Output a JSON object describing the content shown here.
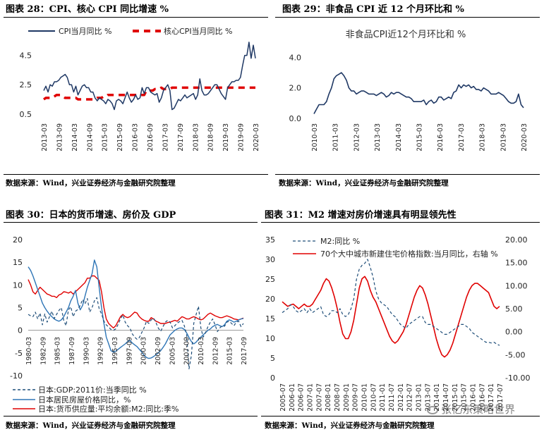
{
  "panels": [
    {
      "title": "图表 28：CPI、核心 CPI 同比增速  %",
      "source": "数据来源：Wind，兴业证券经济与金融研究院整理"
    },
    {
      "title": "图表 29：非食品 CPI 近 12 个月环比和  %",
      "source": "数据来源：Wind，兴业证券经济与金融研究院整理"
    },
    {
      "title": "图表 30：日本的货币增速、房价及 GDP",
      "source": "数据来源：Wind，兴业证券经济与金融研究院整理"
    },
    {
      "title": "图表 31：M2 增速对房价增速具有明显领先性",
      "source": "数据来源：Wind，兴业证券经济与金融研究院整理"
    }
  ],
  "watermark": "张忆东策略世界",
  "colors": {
    "navy": "#1f3864",
    "red": "#e00000",
    "blue": "#2e75b6",
    "darkblue": "#1f4e79"
  },
  "chart_data": [
    {
      "type": "line",
      "title": "",
      "x_ticks": [
        "2013-03",
        "2013-09",
        "2014-03",
        "2014-09",
        "2015-03",
        "2015-09",
        "2016-03",
        "2016-09",
        "2017-03",
        "2017-09",
        "2018-03",
        "2018-09",
        "2019-03",
        "2019-09",
        "2020-03"
      ],
      "y_ticks": [
        "0.5",
        "2.5",
        "4.5"
      ],
      "ylim": [
        0.2,
        5.3
      ],
      "legend": "top",
      "series": [
        {
          "name": "CPI当月同比  %",
          "style": "solid",
          "color": "#1f3864",
          "values": [
            2.1,
            2.4,
            2.0,
            2.5,
            2.4,
            2.7,
            2.7,
            2.8,
            3.0,
            3.1,
            3.2,
            3.0,
            2.5,
            2.5,
            2.0,
            2.4,
            1.8,
            2.1,
            2.4,
            2.5,
            2.3,
            2.3,
            2.0,
            2.0,
            1.6,
            1.4,
            1.6,
            1.5,
            1.4,
            1.2,
            1.5,
            1.4,
            1.2,
            0.8,
            1.4,
            1.5,
            1.4,
            1.2,
            1.6,
            2.0,
            1.6,
            1.3,
            1.5,
            1.8,
            1.5,
            1.6,
            2.3,
            1.9,
            2.3,
            2.3,
            2.0,
            1.9,
            1.8,
            1.9,
            1.3,
            1.6,
            2.1,
            2.3,
            2.5,
            2.1,
            0.8,
            0.9,
            1.2,
            1.5,
            1.4,
            1.6,
            1.8,
            1.6,
            1.7,
            1.8,
            1.9,
            1.5,
            1.8,
            2.9,
            2.1,
            1.8,
            1.8,
            1.9,
            2.1,
            2.3,
            2.5,
            2.5,
            2.2,
            1.9,
            1.7,
            1.5,
            2.3,
            2.5,
            2.7,
            2.7,
            2.8,
            2.8,
            3.0,
            3.8,
            4.5,
            4.5,
            5.4,
            4.3,
            5.2,
            4.3
          ]
        },
        {
          "name": "核心CPI当月同比  %",
          "style": "dashed",
          "color": "#e00000",
          "values": [
            1.5,
            1.6,
            1.6,
            1.6,
            1.6,
            1.7,
            1.8,
            1.8,
            1.8,
            1.7,
            1.6,
            1.6,
            1.6,
            1.6,
            1.6,
            1.6,
            1.5,
            1.5,
            1.5,
            1.5,
            1.5,
            1.5,
            1.5,
            1.5,
            1.5,
            1.6,
            1.6,
            1.6,
            1.7,
            1.7,
            1.8,
            1.8,
            1.8,
            1.8,
            1.8,
            1.8,
            1.8,
            1.8,
            1.8,
            1.8,
            1.8,
            1.8,
            1.8,
            1.8,
            1.8,
            1.8,
            1.8,
            1.8,
            2.1,
            2.1,
            2.1,
            2.1,
            2.2,
            2.2,
            2.2,
            2.3,
            2.2,
            2.2,
            2.2,
            2.2,
            2.3,
            2.3,
            2.3,
            2.3,
            2.3,
            2.3,
            2.3,
            2.3,
            2.3,
            2.3,
            2.3,
            2.3,
            2.3,
            2.3,
            2.3,
            2.3,
            2.3,
            2.3,
            2.3,
            2.3,
            2.3,
            2.3,
            2.3,
            2.3,
            2.3,
            2.3,
            2.3,
            2.3,
            2.3,
            2.3,
            2.3,
            2.3,
            2.3,
            2.3,
            2.3,
            2.3,
            2.3,
            2.3,
            2.3,
            2.3
          ]
        }
      ]
    },
    {
      "type": "line",
      "title": "非食品CPI近12个月环比和  %",
      "x_ticks": [
        "2010-03",
        "2011-03",
        "2012-03",
        "2013-03",
        "2014-03",
        "2015-03",
        "2016-03",
        "2017-03",
        "2018-03",
        "2019-03",
        "2020-03"
      ],
      "y_ticks": [
        "0.0",
        "2.0",
        "4.0"
      ],
      "ylim": [
        0,
        4.3
      ],
      "series": [
        {
          "name": "",
          "style": "solid",
          "color": "#1f3864",
          "values": [
            0.3,
            0.6,
            0.9,
            0.9,
            0.9,
            1.1,
            1.6,
            2.0,
            2.6,
            2.8,
            2.9,
            3.0,
            2.8,
            2.5,
            2.0,
            1.8,
            1.8,
            1.6,
            1.7,
            1.8,
            1.8,
            1.7,
            1.6,
            1.6,
            1.6,
            1.5,
            1.6,
            1.7,
            1.6,
            1.4,
            1.5,
            1.7,
            1.6,
            1.7,
            1.7,
            1.6,
            1.5,
            1.4,
            1.4,
            1.3,
            1.1,
            1.1,
            1.1,
            1.1,
            1.2,
            0.9,
            1.1,
            1.2,
            1.0,
            1.1,
            1.4,
            1.4,
            1.2,
            1.3,
            1.4,
            1.3,
            1.7,
            1.8,
            2.2,
            2.0,
            2.2,
            2.1,
            2.2,
            2.0,
            2.1,
            1.9,
            1.9,
            1.8,
            2.0,
            1.9,
            1.8,
            1.6,
            1.6,
            1.6,
            1.7,
            1.6,
            1.5,
            1.3,
            1.1,
            1.0,
            1.0,
            1.1,
            1.6,
            0.9,
            0.7
          ]
        }
      ]
    },
    {
      "type": "line",
      "title": "",
      "x_ticks": [
        "1980-03",
        "1982-09",
        "1985-03",
        "1987-09",
        "1990-03",
        "1992-09",
        "1995-03",
        "1997-09",
        "2000-03",
        "2002-09",
        "2005-03",
        "2007-09",
        "2010-03",
        "2012-09",
        "2015-03",
        "2017-09"
      ],
      "y_ticks": [
        "-10",
        "-5",
        "0",
        "5",
        "10",
        "15",
        "20"
      ],
      "ylim": [
        -10,
        20
      ],
      "legend": "bottom",
      "series": [
        {
          "name": "日本:GDP:2011价:当季同比  %",
          "style": "dashed",
          "color": "#1f4e79",
          "values": [
            3.5,
            3.2,
            3.0,
            4.0,
            2.5,
            3.8,
            1.2,
            3.6,
            1.8,
            3.0,
            4.2,
            2.6,
            3.5,
            4.4,
            5.0,
            2.2,
            1.0,
            4.5,
            5.2,
            3.0,
            4.2,
            4.6,
            5.5,
            6.8,
            5.8,
            7.0,
            4.0,
            5.0,
            6.5,
            7.2,
            4.8,
            3.6,
            2.0,
            1.2,
            0.7,
            0.2,
            0.0,
            0.3,
            1.3,
            2.5,
            3.4,
            1.8,
            1.0,
            0.5,
            -0.8,
            -1.5,
            -2.0,
            -1.6,
            -0.5,
            0.5,
            2.0,
            1.5,
            2.3,
            2.7,
            1.7,
            0.5,
            -0.2,
            0.8,
            1.8,
            2.2,
            1.8,
            0.5,
            1.0,
            1.6,
            1.9,
            2.2,
            1.0,
            -1.0,
            -8.5,
            -5.5,
            1.5,
            3.5,
            5.3,
            0.5,
            -1.5,
            -0.5,
            0.8,
            1.8,
            2.5,
            1.2,
            -0.3,
            0.5,
            1.0,
            0.9,
            1.8,
            2.0,
            1.5,
            1.0,
            1.8,
            2.0,
            0.8,
            1.5
          ]
        },
        {
          "name": "日本居民房屋价格同比，%",
          "style": "solid",
          "color": "#2e75b6",
          "values": [
            14.0,
            13.2,
            12.0,
            10.5,
            9.0,
            7.5,
            6.0,
            5.0,
            4.2,
            3.5,
            3.0,
            2.5,
            2.2,
            2.0,
            2.3,
            3.0,
            4.0,
            5.0,
            6.5,
            7.5,
            8.8,
            6.0,
            4.5,
            5.5,
            7.5,
            9.5,
            11.0,
            12.5,
            15.5,
            14.0,
            9.5,
            5.0,
            1.5,
            -1.5,
            -3.0,
            -4.5,
            -4.8,
            -4.6,
            -4.2,
            -3.8,
            -3.4,
            -3.0,
            -2.5,
            -2.2,
            -2.8,
            -3.2,
            -3.6,
            -4.2,
            -4.8,
            -5.5,
            -6.0,
            -6.2,
            -6.1,
            -5.8,
            -5.4,
            -5.0,
            -4.5,
            -3.8,
            -3.0,
            -2.0,
            -1.0,
            -0.5,
            0.0,
            0.3,
            0.5,
            0.5,
            0.2,
            -0.6,
            -1.6,
            -2.5,
            -3.0,
            -2.6,
            -2.0,
            -1.5,
            -1.0,
            -0.5,
            0.0,
            0.3,
            0.8,
            1.1,
            1.3,
            1.0,
            0.8,
            1.2,
            2.0,
            2.3,
            2.1,
            1.8,
            2.0,
            2.3,
            2.5,
            2.6
          ]
        },
        {
          "name": "日本:货币供应量:平均余额:M2:同比:季%",
          "style": "solid",
          "color": "#e00000",
          "values": [
            11.2,
            10.0,
            8.5,
            8.0,
            8.8,
            9.5,
            9.0,
            8.5,
            8.0,
            7.8,
            7.5,
            7.5,
            7.2,
            7.8,
            8.0,
            8.5,
            8.4,
            8.2,
            8.5,
            8.0,
            8.5,
            9.0,
            9.5,
            10.0,
            10.5,
            11.5,
            11.5,
            12.0,
            12.0,
            11.5,
            11.0,
            8.5,
            5.0,
            2.5,
            1.5,
            1.0,
            0.5,
            1.0,
            2.0,
            3.0,
            3.5,
            3.0,
            2.8,
            3.0,
            3.5,
            4.0,
            3.8,
            3.0,
            2.5,
            2.2,
            2.0,
            2.0,
            2.8,
            2.5,
            2.0,
            1.8,
            1.5,
            1.5,
            1.5,
            1.7,
            1.8,
            2.0,
            2.2,
            2.0,
            2.5,
            3.0,
            2.8,
            2.5,
            2.5,
            2.8,
            3.0,
            2.8,
            2.5,
            2.3,
            2.5,
            3.0,
            3.5,
            3.8,
            3.5,
            3.2,
            3.0,
            2.8,
            2.8,
            3.0,
            3.2,
            3.0,
            2.8,
            2.5,
            2.4,
            2.3,
            2.5,
            2.7
          ]
        }
      ]
    },
    {
      "type": "line",
      "title": "",
      "x_ticks": [
        "2005-07",
        "2006-01",
        "2006-07",
        "2007-01",
        "2007-07",
        "2008-01",
        "2008-07",
        "2009-01",
        "2009-07",
        "2010-01",
        "2010-07",
        "2011-01",
        "2011-07",
        "2012-01",
        "2012-07",
        "2013-01",
        "2013-07",
        "2014-01",
        "2014-07",
        "2015-01",
        "2015-07",
        "2016-01",
        "2016-07",
        "2017-01",
        "2017-07"
      ],
      "y_left_ticks": [
        "0",
        "5",
        "10",
        "15",
        "20",
        "25",
        "30",
        "35"
      ],
      "y_right_ticks": [
        "-10.00",
        "-5.00",
        "0.00",
        "5.00",
        "10.00",
        "15.00",
        "20.00"
      ],
      "ylim_left": [
        0,
        35
      ],
      "ylim_right": [
        -10,
        20
      ],
      "legend": "top-left",
      "series": [
        {
          "name": "M2:同比  %",
          "style": "dashed",
          "color": "#1f4e79",
          "axis": "left",
          "values": [
            16.5,
            17.0,
            17.5,
            18.5,
            18.0,
            17.0,
            16.5,
            17.0,
            17.5,
            16.5,
            17.5,
            16.5,
            17.0,
            17.5,
            18.0,
            16.0,
            15.5,
            16.0,
            17.0,
            17.0,
            16.5,
            17.5,
            16.0,
            15.5,
            16.0,
            17.5,
            20.0,
            25.0,
            27.5,
            28.5,
            29.0,
            30.0,
            28.0,
            25.5,
            22.0,
            20.0,
            19.0,
            18.5,
            18.0,
            17.0,
            16.0,
            15.5,
            14.5,
            13.5,
            13.0,
            12.5,
            13.5,
            14.0,
            14.5,
            15.0,
            15.5,
            15.5,
            14.0,
            13.5,
            13.5,
            13.0,
            12.5,
            12.0,
            11.5,
            11.0,
            11.0,
            11.5,
            12.0,
            12.5,
            13.0,
            13.5,
            13.5,
            13.0,
            12.5,
            11.5,
            11.0,
            10.5,
            10.0,
            9.5,
            9.0,
            9.0,
            8.8,
            9.0,
            8.5,
            8.2
          ]
        },
        {
          "name": "70个大中城市新建住宅价格指数:当月同比，右轴  %",
          "style": "solid",
          "color": "#e00000",
          "axis": "right",
          "values": [
            6.5,
            6.0,
            5.5,
            5.8,
            6.0,
            5.5,
            5.0,
            5.5,
            6.0,
            5.5,
            5.5,
            6.0,
            7.0,
            8.0,
            9.0,
            10.5,
            11.5,
            11.0,
            9.5,
            7.5,
            5.0,
            2.0,
            -0.5,
            -1.5,
            -1.5,
            0.0,
            2.5,
            6.0,
            9.5,
            11.5,
            12.0,
            11.0,
            9.0,
            7.5,
            6.5,
            5.0,
            3.5,
            2.0,
            0.5,
            -1.0,
            -2.0,
            -2.5,
            -2.0,
            -1.0,
            0.0,
            1.5,
            3.5,
            5.5,
            7.5,
            9.0,
            10.0,
            9.5,
            8.0,
            6.0,
            3.5,
            1.0,
            -1.5,
            -3.5,
            -5.0,
            -5.5,
            -5.0,
            -4.0,
            -2.5,
            -0.5,
            1.5,
            3.5,
            5.5,
            7.5,
            9.0,
            10.0,
            10.5,
            10.5,
            10.0,
            9.5,
            9.0,
            8.5,
            7.0,
            5.5,
            5.0,
            5.5
          ]
        }
      ]
    }
  ]
}
